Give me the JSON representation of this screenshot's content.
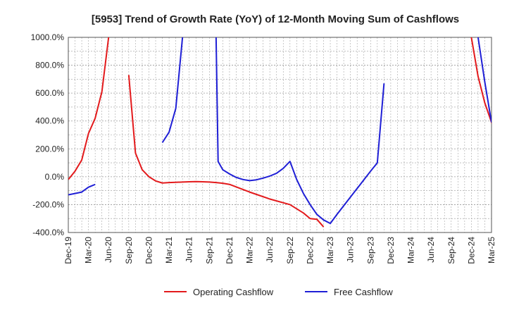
{
  "chart_data": {
    "type": "line",
    "title": "[5953]  Trend of Growth Rate (YoY) of 12-Month Moving Sum of Cashflows",
    "xlabel": "",
    "ylabel": "",
    "ylim": [
      -400,
      1000
    ],
    "grid": true,
    "legend_position": "bottom",
    "x_ticks": [
      "Dec-19",
      "Mar-20",
      "Jun-20",
      "Sep-20",
      "Dec-20",
      "Mar-21",
      "Jun-21",
      "Sep-21",
      "Dec-21",
      "Mar-22",
      "Jun-22",
      "Sep-22",
      "Dec-22",
      "Mar-23",
      "Jun-23",
      "Sep-23",
      "Dec-23",
      "Mar-24",
      "Jun-24",
      "Sep-24",
      "Dec-24",
      "Mar-25"
    ],
    "y_ticks": [
      "1000.0%",
      "800.0%",
      "600.0%",
      "400.0%",
      "200.0%",
      "0.0%",
      "-200.0%",
      "-400.0%"
    ],
    "y_tick_values": [
      1000,
      800,
      600,
      400,
      200,
      0,
      -200,
      -400
    ],
    "series": [
      {
        "name": "Operating Cashflow",
        "color": "#e31a1c",
        "segments": [
          [
            [
              0,
              -20
            ],
            [
              1,
              40
            ],
            [
              2,
              120
            ],
            [
              3,
              310
            ],
            [
              4,
              420
            ],
            [
              5,
              610
            ],
            [
              6,
              1000
            ]
          ],
          [
            [
              9,
              730
            ],
            [
              10,
              170
            ],
            [
              11,
              50
            ],
            [
              12,
              0
            ],
            [
              13,
              -30
            ],
            [
              14,
              -45
            ],
            [
              15,
              -42
            ],
            [
              16,
              -40
            ],
            [
              17,
              -38
            ],
            [
              18,
              -36
            ],
            [
              19,
              -35
            ],
            [
              20,
              -36
            ],
            [
              21,
              -38
            ],
            [
              22,
              -42
            ],
            [
              23,
              -47
            ],
            [
              24,
              -55
            ],
            [
              27,
              -110
            ],
            [
              30,
              -160
            ],
            [
              33,
              -200
            ],
            [
              35,
              -260
            ],
            [
              36,
              -300
            ],
            [
              37,
              -305
            ],
            [
              38,
              -360
            ]
          ],
          [
            [
              60,
              1000
            ],
            [
              61,
              720
            ],
            [
              62,
              530
            ],
            [
              63,
              390
            ],
            [
              65,
              250
            ]
          ]
        ]
      },
      {
        "name": "Free Cashflow",
        "color": "#1f1fd6",
        "segments": [
          [
            [
              0,
              -130
            ],
            [
              1,
              -120
            ],
            [
              2,
              -110
            ],
            [
              3,
              -75
            ],
            [
              4,
              -55
            ]
          ],
          [
            [
              14,
              245
            ],
            [
              15,
              320
            ],
            [
              16,
              490
            ],
            [
              17,
              1000
            ]
          ],
          [
            [
              22,
              1000
            ],
            [
              22.3,
              110
            ],
            [
              23,
              50
            ],
            [
              24,
              20
            ],
            [
              25,
              -5
            ],
            [
              26,
              -20
            ],
            [
              27,
              -28
            ],
            [
              28,
              -22
            ],
            [
              29,
              -10
            ],
            [
              30,
              5
            ],
            [
              31,
              25
            ],
            [
              32,
              60
            ],
            [
              33,
              110
            ],
            [
              34,
              -20
            ],
            [
              35,
              -120
            ],
            [
              36,
              -200
            ],
            [
              37,
              -270
            ],
            [
              38,
              -310
            ],
            [
              39,
              -335
            ],
            [
              40,
              -270
            ],
            [
              45,
              40
            ],
            [
              46,
              100
            ],
            [
              47,
              670
            ]
          ],
          [
            [
              61,
              1000
            ],
            [
              62,
              680
            ],
            [
              63,
              390
            ]
          ]
        ]
      }
    ]
  }
}
